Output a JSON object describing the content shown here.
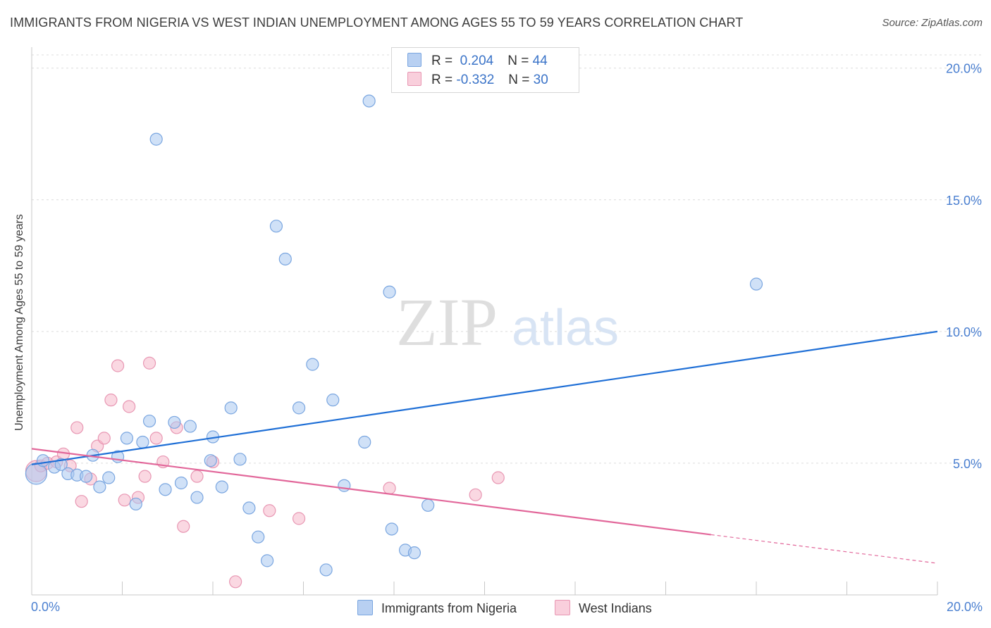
{
  "title": "IMMIGRANTS FROM NIGERIA VS WEST INDIAN UNEMPLOYMENT AMONG AGES 55 TO 59 YEARS CORRELATION CHART",
  "source": "Source: ZipAtlas.com",
  "watermark": {
    "zip": "ZIP",
    "atlas": "atlas"
  },
  "colors": {
    "blue": "#1f6fd6",
    "pink": "#e2679a",
    "blue_fill": "#a9c8f0",
    "pink_fill": "#f5b8cb",
    "tick": "#4a7fd0"
  },
  "legend": {
    "rows": [
      {
        "r_label": "R =",
        "r_value": "0.204",
        "n_label": "N =",
        "n_value": "44"
      },
      {
        "r_label": "R =",
        "r_value": "-0.332",
        "n_label": "N =",
        "n_value": "30"
      }
    ]
  },
  "bottom_legend": {
    "series1": "Immigrants from Nigeria",
    "series2": "West Indians"
  },
  "chart_data": {
    "type": "scatter",
    "title": "IMMIGRANTS FROM NIGERIA VS WEST INDIAN UNEMPLOYMENT AMONG AGES 55 TO 59 YEARS CORRELATION CHART",
    "xlabel": "",
    "ylabel": "Unemployment Among Ages 55 to 59 years",
    "xlim": [
      0,
      20
    ],
    "ylim": [
      0,
      20.5
    ],
    "x_tick_labels": [
      "0.0%",
      "20.0%"
    ],
    "y_ticks": [
      5,
      10,
      15,
      20
    ],
    "y_tick_labels": [
      "5.0%",
      "10.0%",
      "15.0%",
      "20.0%"
    ],
    "grid": true,
    "series": [
      {
        "name": "Immigrants from Nigeria",
        "color": "#1f6fd6",
        "r": 0.204,
        "n": 44,
        "trend": {
          "x": [
            0,
            20
          ],
          "y": [
            4.95,
            10.0
          ],
          "dashed_from": null
        },
        "points": [
          {
            "x": 0.1,
            "y": 4.6,
            "big": true
          },
          {
            "x": 0.25,
            "y": 5.1,
            "big": false
          },
          {
            "x": 0.5,
            "y": 4.85,
            "big": false
          },
          {
            "x": 0.65,
            "y": 4.95,
            "big": false
          },
          {
            "x": 0.8,
            "y": 4.6,
            "big": false
          },
          {
            "x": 1.0,
            "y": 4.55,
            "big": false
          },
          {
            "x": 1.2,
            "y": 4.5,
            "big": false
          },
          {
            "x": 1.35,
            "y": 5.3,
            "big": false
          },
          {
            "x": 1.5,
            "y": 4.1,
            "big": false
          },
          {
            "x": 1.7,
            "y": 4.45,
            "big": false
          },
          {
            "x": 1.9,
            "y": 5.25,
            "big": false
          },
          {
            "x": 2.1,
            "y": 5.95,
            "big": false
          },
          {
            "x": 2.3,
            "y": 3.45,
            "big": false
          },
          {
            "x": 2.45,
            "y": 5.8,
            "big": false
          },
          {
            "x": 2.6,
            "y": 6.6,
            "big": false
          },
          {
            "x": 2.75,
            "y": 17.3,
            "big": false
          },
          {
            "x": 2.95,
            "y": 4.0,
            "big": false
          },
          {
            "x": 3.15,
            "y": 6.55,
            "big": false
          },
          {
            "x": 3.3,
            "y": 4.25,
            "big": false
          },
          {
            "x": 3.5,
            "y": 6.4,
            "big": false
          },
          {
            "x": 3.65,
            "y": 3.7,
            "big": false
          },
          {
            "x": 3.95,
            "y": 5.1,
            "big": false
          },
          {
            "x": 4.0,
            "y": 6.0,
            "big": false
          },
          {
            "x": 4.2,
            "y": 4.1,
            "big": false
          },
          {
            "x": 4.4,
            "y": 7.1,
            "big": false
          },
          {
            "x": 4.6,
            "y": 5.15,
            "big": false
          },
          {
            "x": 4.8,
            "y": 3.3,
            "big": false
          },
          {
            "x": 5.0,
            "y": 2.2,
            "big": false
          },
          {
            "x": 5.2,
            "y": 1.3,
            "big": false
          },
          {
            "x": 5.4,
            "y": 14.0,
            "big": false
          },
          {
            "x": 5.6,
            "y": 12.75,
            "big": false
          },
          {
            "x": 5.9,
            "y": 7.1,
            "big": false
          },
          {
            "x": 6.2,
            "y": 8.75,
            "big": false
          },
          {
            "x": 6.5,
            "y": 0.95,
            "big": false
          },
          {
            "x": 6.65,
            "y": 7.4,
            "big": false
          },
          {
            "x": 6.9,
            "y": 4.15,
            "big": false
          },
          {
            "x": 7.35,
            "y": 5.8,
            "big": false
          },
          {
            "x": 7.45,
            "y": 18.75,
            "big": false
          },
          {
            "x": 7.9,
            "y": 11.5,
            "big": false
          },
          {
            "x": 7.95,
            "y": 2.5,
            "big": false
          },
          {
            "x": 8.25,
            "y": 1.7,
            "big": false
          },
          {
            "x": 8.45,
            "y": 1.6,
            "big": false
          },
          {
            "x": 8.75,
            "y": 3.4,
            "big": false
          },
          {
            "x": 16.0,
            "y": 11.8,
            "big": false
          }
        ]
      },
      {
        "name": "West Indians",
        "color": "#e2679a",
        "r": -0.332,
        "n": 30,
        "trend": {
          "x": [
            0,
            20
          ],
          "y": [
            5.55,
            1.2
          ],
          "dashed_from": 15.0
        },
        "points": [
          {
            "x": 0.1,
            "y": 4.7,
            "big": true
          },
          {
            "x": 0.2,
            "y": 4.9,
            "big": false
          },
          {
            "x": 0.35,
            "y": 5.0,
            "big": false
          },
          {
            "x": 0.55,
            "y": 5.05,
            "big": false
          },
          {
            "x": 0.7,
            "y": 5.35,
            "big": false
          },
          {
            "x": 0.85,
            "y": 4.9,
            "big": false
          },
          {
            "x": 1.0,
            "y": 6.35,
            "big": false
          },
          {
            "x": 1.1,
            "y": 3.55,
            "big": false
          },
          {
            "x": 1.3,
            "y": 4.4,
            "big": false
          },
          {
            "x": 1.45,
            "y": 5.65,
            "big": false
          },
          {
            "x": 1.6,
            "y": 5.95,
            "big": false
          },
          {
            "x": 1.75,
            "y": 7.4,
            "big": false
          },
          {
            "x": 1.9,
            "y": 8.7,
            "big": false
          },
          {
            "x": 2.05,
            "y": 3.6,
            "big": false
          },
          {
            "x": 2.15,
            "y": 7.15,
            "big": false
          },
          {
            "x": 2.35,
            "y": 3.7,
            "big": false
          },
          {
            "x": 2.5,
            "y": 4.5,
            "big": false
          },
          {
            "x": 2.6,
            "y": 8.8,
            "big": false
          },
          {
            "x": 2.75,
            "y": 5.95,
            "big": false
          },
          {
            "x": 2.9,
            "y": 5.05,
            "big": false
          },
          {
            "x": 3.2,
            "y": 6.35,
            "big": false
          },
          {
            "x": 3.35,
            "y": 2.6,
            "big": false
          },
          {
            "x": 3.65,
            "y": 4.5,
            "big": false
          },
          {
            "x": 4.0,
            "y": 5.05,
            "big": false
          },
          {
            "x": 4.5,
            "y": 0.5,
            "big": false
          },
          {
            "x": 5.25,
            "y": 3.2,
            "big": false
          },
          {
            "x": 5.9,
            "y": 2.9,
            "big": false
          },
          {
            "x": 7.9,
            "y": 4.05,
            "big": false
          },
          {
            "x": 9.8,
            "y": 3.8,
            "big": false
          },
          {
            "x": 10.3,
            "y": 4.45,
            "big": false
          }
        ]
      }
    ]
  }
}
